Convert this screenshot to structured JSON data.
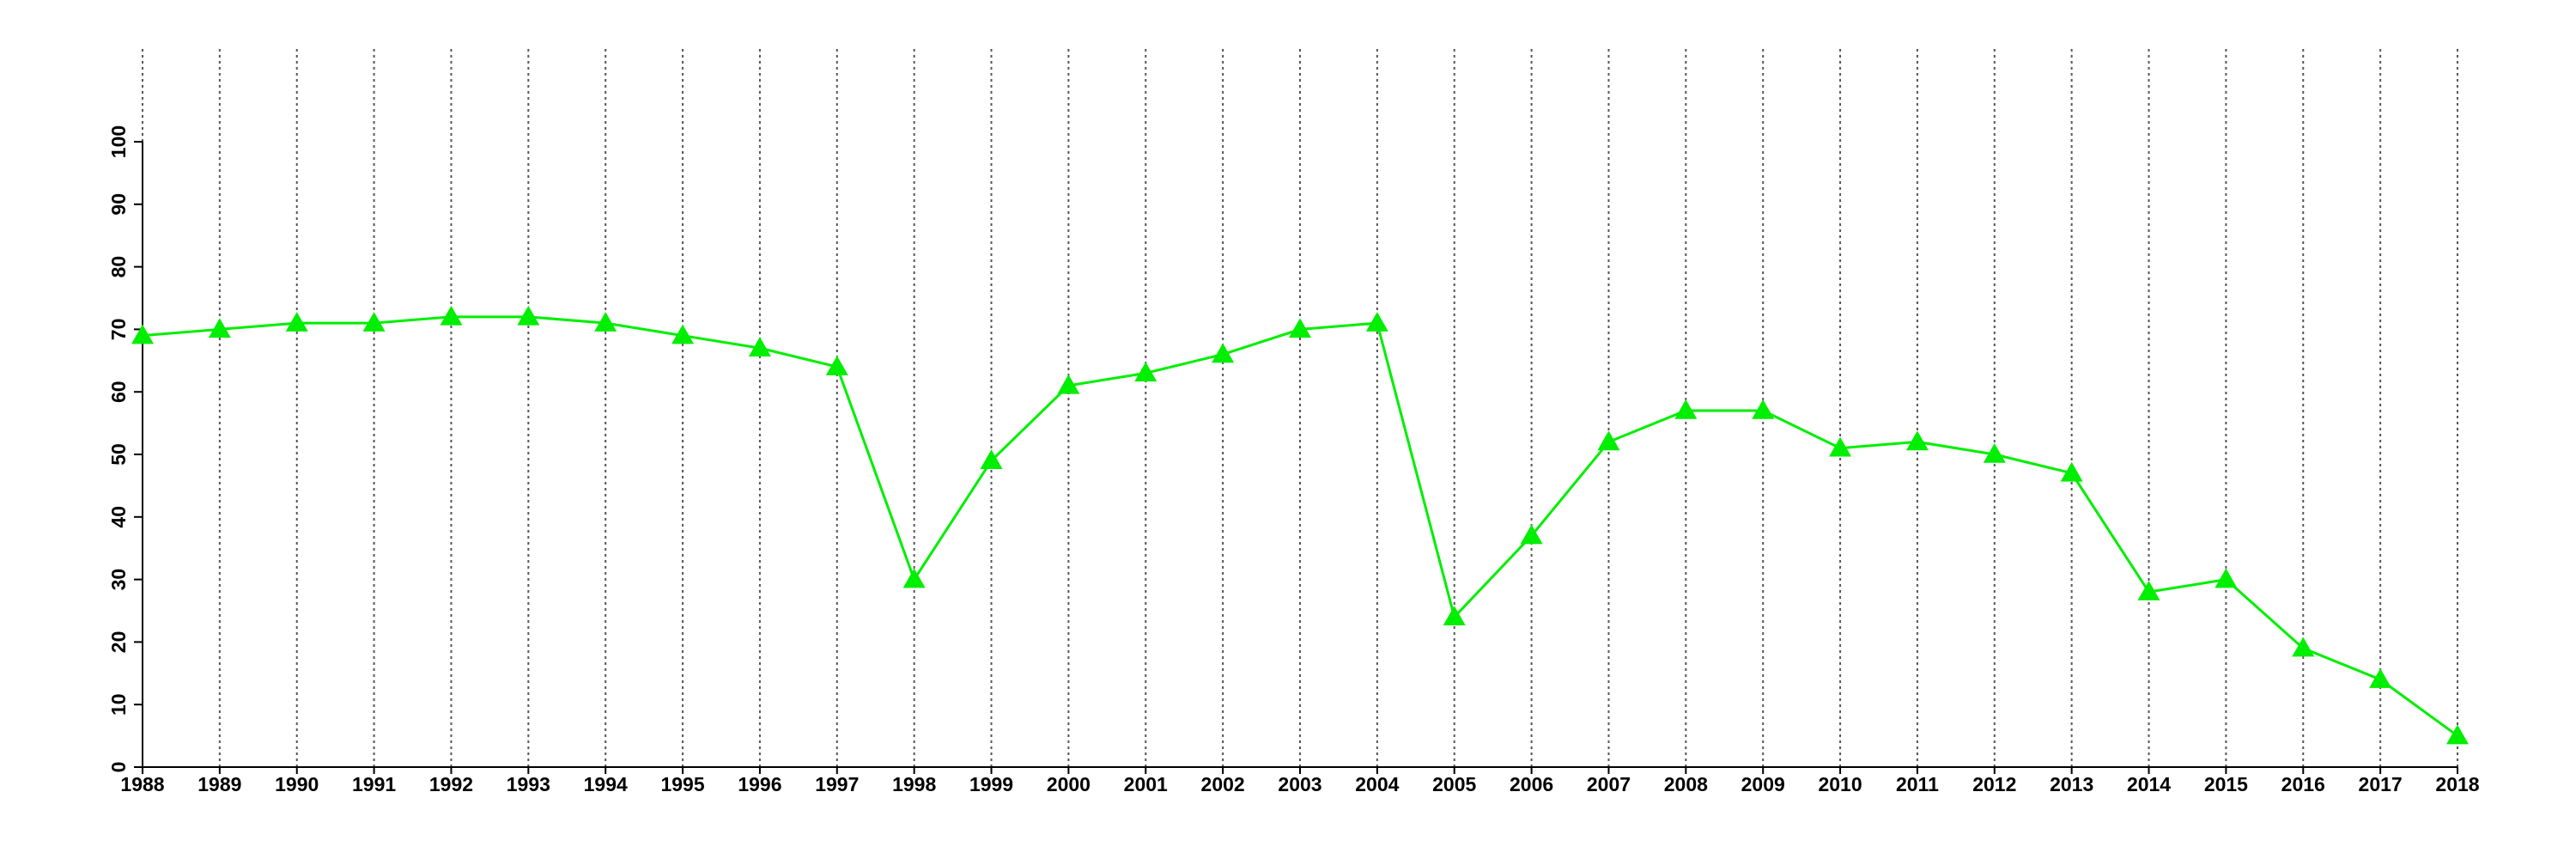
{
  "chart_data": {
    "type": "line",
    "x": [
      1988,
      1989,
      1990,
      1991,
      1992,
      1993,
      1994,
      1995,
      1996,
      1997,
      1998,
      1999,
      2000,
      2001,
      2002,
      2003,
      2004,
      2005,
      2006,
      2007,
      2008,
      2009,
      2010,
      2011,
      2012,
      2013,
      2014,
      2015,
      2016,
      2017,
      2018
    ],
    "series": [
      {
        "color": "#00ee00",
        "marker": "triangle",
        "values": [
          69,
          70,
          71,
          71,
          72,
          72,
          71,
          69,
          67,
          64,
          30,
          49,
          61,
          63,
          66,
          70,
          71,
          24,
          37,
          52,
          57,
          57,
          51,
          52,
          50,
          47,
          28,
          30,
          19,
          14,
          5
        ]
      }
    ],
    "xlim": [
      1988,
      2018
    ],
    "xticks": [
      1988,
      1989,
      1990,
      1991,
      1992,
      1993,
      1994,
      1995,
      1996,
      1997,
      1998,
      1999,
      2000,
      2001,
      2002,
      2003,
      2004,
      2005,
      2006,
      2007,
      2008,
      2009,
      2010,
      2011,
      2012,
      2013,
      2014,
      2015,
      2016,
      2017,
      2018
    ],
    "ylim": [
      0,
      100
    ],
    "yticks": [
      0,
      10,
      20,
      30,
      40,
      50,
      60,
      70,
      80,
      90,
      100
    ],
    "grid": "x"
  }
}
